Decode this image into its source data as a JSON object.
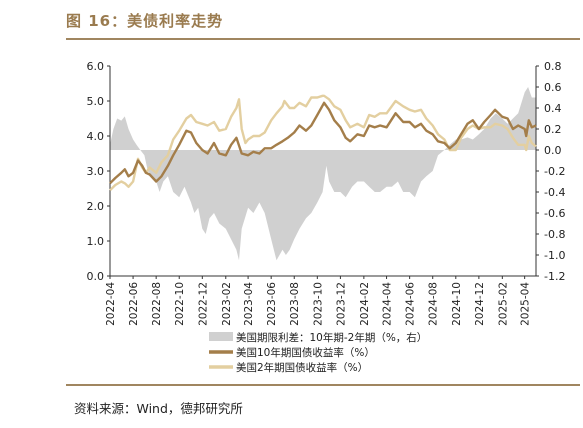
{
  "figure_title": "图 16：美债利率走势",
  "source_text": "资料来源：Wind，德邦研究所",
  "chart_data": {
    "type": "line",
    "title": "",
    "xlabel": "",
    "ylabel": "",
    "ylim": [
      0.0,
      6.0
    ],
    "y2lim": [
      -1.2,
      0.8
    ],
    "y_ticks": [
      "6.0",
      "5.0",
      "4.0",
      "3.0",
      "2.0",
      "1.0",
      "0.0"
    ],
    "y2_ticks": [
      "0.8",
      "0.6",
      "0.4",
      "0.2",
      "0.0",
      "-0.2",
      "-0.4",
      "-0.6",
      "-0.8",
      "-1.0",
      "-1.2"
    ],
    "x_ticks": [
      "2022-04",
      "2022-06",
      "2022-08",
      "2022-10",
      "2022-12",
      "2023-02",
      "2023-04",
      "2023-06",
      "2023-08",
      "2023-10",
      "2023-12",
      "2024-02",
      "2024-04",
      "2024-06",
      "2024-08",
      "2024-10",
      "2024-12",
      "2025-02",
      "2025-04"
    ],
    "x_range": [
      "2022-04",
      "2025-05"
    ],
    "grid": false,
    "legend_position": "bottom",
    "colors": {
      "spread": "#d0d0d0",
      "ten_year": "#a47e4a",
      "two_year": "#e3cfa0"
    },
    "series": [
      {
        "name": "美国期限利差：10年期-2年期（%，右）",
        "axis": "right",
        "kind": "area",
        "x": [
          "2022-04-01",
          "2022-04-10",
          "2022-04-20",
          "2022-05-01",
          "2022-05-10",
          "2022-05-20",
          "2022-06-01",
          "2022-06-10",
          "2022-06-20",
          "2022-07-01",
          "2022-07-10",
          "2022-07-20",
          "2022-08-01",
          "2022-08-10",
          "2022-08-20",
          "2022-09-01",
          "2022-09-15",
          "2022-10-01",
          "2022-10-15",
          "2022-11-01",
          "2022-11-10",
          "2022-11-20",
          "2022-12-01",
          "2022-12-10",
          "2022-12-20",
          "2023-01-01",
          "2023-01-15",
          "2023-02-01",
          "2023-02-15",
          "2023-03-01",
          "2023-03-08",
          "2023-03-15",
          "2023-04-01",
          "2023-04-15",
          "2023-05-01",
          "2023-05-15",
          "2023-06-01",
          "2023-06-15",
          "2023-07-01",
          "2023-07-10",
          "2023-07-20",
          "2023-08-01",
          "2023-08-15",
          "2023-09-01",
          "2023-09-15",
          "2023-10-01",
          "2023-10-15",
          "2023-10-25",
          "2023-11-01",
          "2023-11-15",
          "2023-12-01",
          "2023-12-15",
          "2024-01-01",
          "2024-01-15",
          "2024-02-01",
          "2024-02-15",
          "2024-03-01",
          "2024-03-15",
          "2024-04-01",
          "2024-04-15",
          "2024-05-01",
          "2024-05-15",
          "2024-06-01",
          "2024-06-15",
          "2024-07-01",
          "2024-07-15",
          "2024-08-01",
          "2024-08-15",
          "2024-09-01",
          "2024-09-15",
          "2024-10-01",
          "2024-10-15",
          "2024-11-01",
          "2024-11-15",
          "2024-12-01",
          "2024-12-15",
          "2025-01-01",
          "2025-01-15",
          "2025-02-01",
          "2025-02-15",
          "2025-03-01",
          "2025-03-15",
          "2025-04-01",
          "2025-04-10",
          "2025-04-20",
          "2025-05-01"
        ],
        "values": [
          0.05,
          0.2,
          0.3,
          0.28,
          0.32,
          0.2,
          0.1,
          0.05,
          0.0,
          -0.05,
          -0.2,
          -0.25,
          -0.3,
          -0.4,
          -0.3,
          -0.25,
          -0.4,
          -0.45,
          -0.35,
          -0.5,
          -0.6,
          -0.55,
          -0.75,
          -0.8,
          -0.65,
          -0.6,
          -0.7,
          -0.75,
          -0.85,
          -0.95,
          -1.05,
          -0.75,
          -0.55,
          -0.6,
          -0.5,
          -0.6,
          -0.85,
          -1.05,
          -0.95,
          -1.0,
          -0.95,
          -0.85,
          -0.75,
          -0.65,
          -0.6,
          -0.5,
          -0.4,
          -0.15,
          -0.3,
          -0.4,
          -0.4,
          -0.45,
          -0.35,
          -0.3,
          -0.3,
          -0.35,
          -0.4,
          -0.4,
          -0.35,
          -0.35,
          -0.3,
          -0.4,
          -0.4,
          -0.45,
          -0.3,
          -0.25,
          -0.2,
          -0.05,
          0.0,
          0.05,
          0.1,
          0.1,
          0.12,
          0.1,
          0.15,
          0.2,
          0.3,
          0.35,
          0.3,
          0.25,
          0.3,
          0.35,
          0.55,
          0.6,
          0.5,
          0.5
        ]
      },
      {
        "name": "美国10年期国债收益率（%）",
        "axis": "left",
        "kind": "line",
        "x": [
          "2022-04-01",
          "2022-04-15",
          "2022-05-01",
          "2022-05-10",
          "2022-05-20",
          "2022-06-01",
          "2022-06-14",
          "2022-06-25",
          "2022-07-05",
          "2022-07-15",
          "2022-08-01",
          "2022-08-15",
          "2022-09-01",
          "2022-09-15",
          "2022-10-01",
          "2022-10-20",
          "2022-11-01",
          "2022-11-15",
          "2022-12-01",
          "2022-12-15",
          "2023-01-01",
          "2023-01-15",
          "2023-02-01",
          "2023-02-15",
          "2023-03-01",
          "2023-03-15",
          "2023-04-01",
          "2023-04-15",
          "2023-05-01",
          "2023-05-15",
          "2023-06-01",
          "2023-06-15",
          "2023-07-01",
          "2023-07-15",
          "2023-08-01",
          "2023-08-15",
          "2023-09-01",
          "2023-09-15",
          "2023-10-01",
          "2023-10-19",
          "2023-11-01",
          "2023-11-15",
          "2023-12-01",
          "2023-12-15",
          "2023-12-27",
          "2024-01-15",
          "2024-02-01",
          "2024-02-15",
          "2024-03-01",
          "2024-03-15",
          "2024-04-01",
          "2024-04-25",
          "2024-05-15",
          "2024-06-01",
          "2024-06-15",
          "2024-07-01",
          "2024-07-15",
          "2024-08-01",
          "2024-08-15",
          "2024-09-01",
          "2024-09-15",
          "2024-10-01",
          "2024-10-15",
          "2024-11-01",
          "2024-11-15",
          "2024-12-01",
          "2024-12-15",
          "2025-01-01",
          "2025-01-13",
          "2025-02-01",
          "2025-02-15",
          "2025-03-01",
          "2025-03-15",
          "2025-04-01",
          "2025-04-05",
          "2025-04-12",
          "2025-04-20",
          "2025-05-01"
        ],
        "values": [
          2.65,
          2.8,
          2.95,
          3.05,
          2.85,
          2.95,
          3.3,
          3.15,
          2.95,
          2.9,
          2.7,
          2.85,
          3.15,
          3.45,
          3.75,
          4.15,
          4.1,
          3.8,
          3.6,
          3.5,
          3.8,
          3.5,
          3.45,
          3.75,
          3.95,
          3.5,
          3.45,
          3.55,
          3.5,
          3.65,
          3.65,
          3.75,
          3.85,
          3.95,
          4.1,
          4.3,
          4.15,
          4.3,
          4.6,
          4.95,
          4.75,
          4.45,
          4.25,
          3.95,
          3.85,
          4.05,
          4.0,
          4.3,
          4.25,
          4.3,
          4.25,
          4.65,
          4.4,
          4.4,
          4.25,
          4.35,
          4.15,
          4.05,
          3.85,
          3.8,
          3.65,
          3.8,
          4.05,
          4.35,
          4.45,
          4.2,
          4.4,
          4.6,
          4.75,
          4.55,
          4.5,
          4.2,
          4.3,
          4.2,
          4.0,
          4.45,
          4.25,
          4.3
        ]
      },
      {
        "name": "美国2年期国债收益率（%）",
        "axis": "left",
        "kind": "line",
        "x": [
          "2022-04-01",
          "2022-04-15",
          "2022-05-01",
          "2022-05-10",
          "2022-05-20",
          "2022-06-01",
          "2022-06-14",
          "2022-06-25",
          "2022-07-05",
          "2022-07-15",
          "2022-08-01",
          "2022-08-15",
          "2022-09-01",
          "2022-09-15",
          "2022-10-01",
          "2022-10-20",
          "2022-11-01",
          "2022-11-15",
          "2022-12-01",
          "2022-12-15",
          "2023-01-01",
          "2023-01-15",
          "2023-02-01",
          "2023-02-15",
          "2023-03-01",
          "2023-03-08",
          "2023-03-15",
          "2023-03-25",
          "2023-04-01",
          "2023-04-15",
          "2023-05-01",
          "2023-05-15",
          "2023-06-01",
          "2023-06-15",
          "2023-07-01",
          "2023-07-06",
          "2023-07-20",
          "2023-08-01",
          "2023-08-15",
          "2023-09-01",
          "2023-09-15",
          "2023-10-01",
          "2023-10-15",
          "2023-10-19",
          "2023-11-01",
          "2023-11-15",
          "2023-12-01",
          "2023-12-15",
          "2023-12-27",
          "2024-01-15",
          "2024-02-01",
          "2024-02-15",
          "2024-03-01",
          "2024-03-15",
          "2024-04-01",
          "2024-04-25",
          "2024-05-15",
          "2024-06-01",
          "2024-06-15",
          "2024-07-01",
          "2024-07-15",
          "2024-08-01",
          "2024-08-15",
          "2024-09-01",
          "2024-09-15",
          "2024-10-01",
          "2024-10-15",
          "2024-11-01",
          "2024-11-15",
          "2024-12-01",
          "2024-12-15",
          "2025-01-01",
          "2025-01-13",
          "2025-02-01",
          "2025-02-15",
          "2025-03-01",
          "2025-03-15",
          "2025-04-01",
          "2025-04-05",
          "2025-04-12",
          "2025-04-20",
          "2025-05-01"
        ],
        "values": [
          2.45,
          2.6,
          2.7,
          2.65,
          2.55,
          2.7,
          3.35,
          3.1,
          2.95,
          3.1,
          2.95,
          3.25,
          3.45,
          3.9,
          4.15,
          4.5,
          4.6,
          4.4,
          4.35,
          4.3,
          4.4,
          4.15,
          4.2,
          4.55,
          4.8,
          5.05,
          4.2,
          3.8,
          3.9,
          4.0,
          4.0,
          4.1,
          4.45,
          4.65,
          4.85,
          5.0,
          4.8,
          4.8,
          4.95,
          4.85,
          5.1,
          5.1,
          5.15,
          5.15,
          5.05,
          4.85,
          4.75,
          4.45,
          4.25,
          4.35,
          4.25,
          4.6,
          4.55,
          4.65,
          4.65,
          5.0,
          4.85,
          4.75,
          4.7,
          4.75,
          4.5,
          4.3,
          4.05,
          3.9,
          3.6,
          3.6,
          3.95,
          4.2,
          4.3,
          4.2,
          4.25,
          4.25,
          4.35,
          4.3,
          4.2,
          3.95,
          3.75,
          3.75,
          3.6,
          4.0,
          3.8,
          3.7
        ]
      }
    ]
  }
}
